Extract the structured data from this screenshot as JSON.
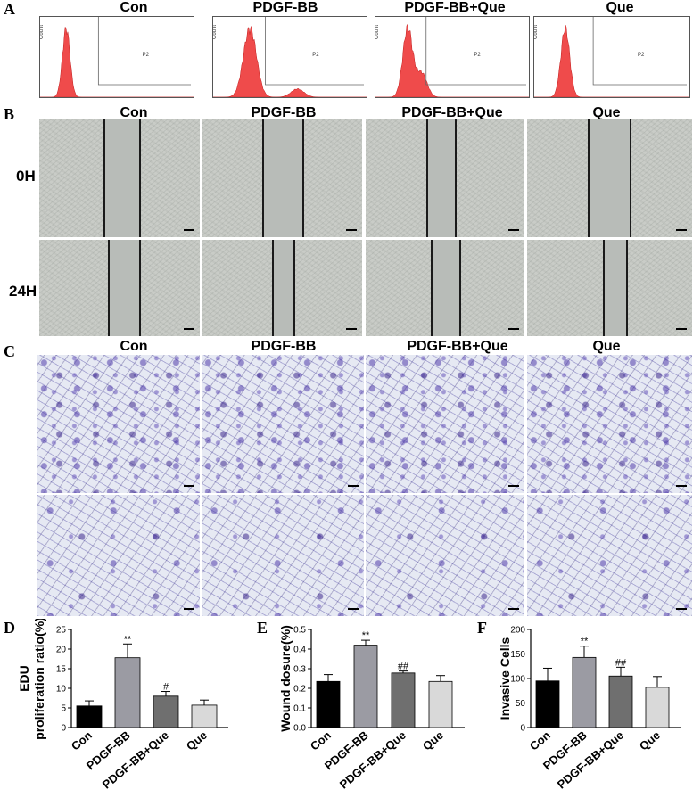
{
  "panels": {
    "A": "A",
    "B": "B",
    "C": "C",
    "D": "D",
    "E": "E",
    "F": "F"
  },
  "groups": [
    "Con",
    "PDGF-BB",
    "PDGF-BB+Que",
    "Que"
  ],
  "flow": {
    "gate_label": "P2",
    "y_axis_label": "Count"
  },
  "wound": {
    "rows": [
      "0H",
      "24H"
    ]
  },
  "chart_data": [
    {
      "type": "bar",
      "panel": "D",
      "categories": [
        "Con",
        "PDGF-BB",
        "PDGF-BB+Que",
        "Que"
      ],
      "values": [
        5.5,
        17.8,
        8.0,
        5.7
      ],
      "errors": [
        1.3,
        3.5,
        1.2,
        1.3
      ],
      "annotations": [
        "",
        "**",
        "#",
        ""
      ],
      "ylabel_lines": [
        "EDU",
        "proliferation ratio(%)"
      ],
      "ylim": [
        0,
        25
      ],
      "yticks": [
        0,
        5,
        10,
        15,
        20,
        25
      ],
      "colors": [
        "#000000",
        "#9b9ba3",
        "#6f6f6f",
        "#d9d9d9"
      ]
    },
    {
      "type": "bar",
      "panel": "E",
      "categories": [
        "Con",
        "PDGF-BB",
        "PDGF-BB+Que",
        "Que"
      ],
      "values": [
        0.235,
        0.42,
        0.278,
        0.235
      ],
      "errors": [
        0.035,
        0.025,
        0.01,
        0.03
      ],
      "annotations": [
        "",
        "**",
        "##",
        ""
      ],
      "ylabel_lines": [
        "Wound dosure(%)"
      ],
      "ylim": [
        0,
        0.5
      ],
      "yticks": [
        0.0,
        0.1,
        0.2,
        0.3,
        0.4,
        0.5
      ],
      "colors": [
        "#000000",
        "#9b9ba3",
        "#6f6f6f",
        "#d9d9d9"
      ]
    },
    {
      "type": "bar",
      "panel": "F",
      "categories": [
        "Con",
        "PDGF-BB",
        "PDGF-BB+Que",
        "Que"
      ],
      "values": [
        95,
        143,
        105,
        82
      ],
      "errors": [
        26,
        23,
        18,
        22
      ],
      "annotations": [
        "",
        "**",
        "##",
        ""
      ],
      "ylabel_lines": [
        "Invasive Cells"
      ],
      "ylim": [
        0,
        200
      ],
      "yticks": [
        0,
        50,
        100,
        150,
        200
      ],
      "colors": [
        "#000000",
        "#9b9ba3",
        "#6f6f6f",
        "#d9d9d9"
      ]
    }
  ]
}
